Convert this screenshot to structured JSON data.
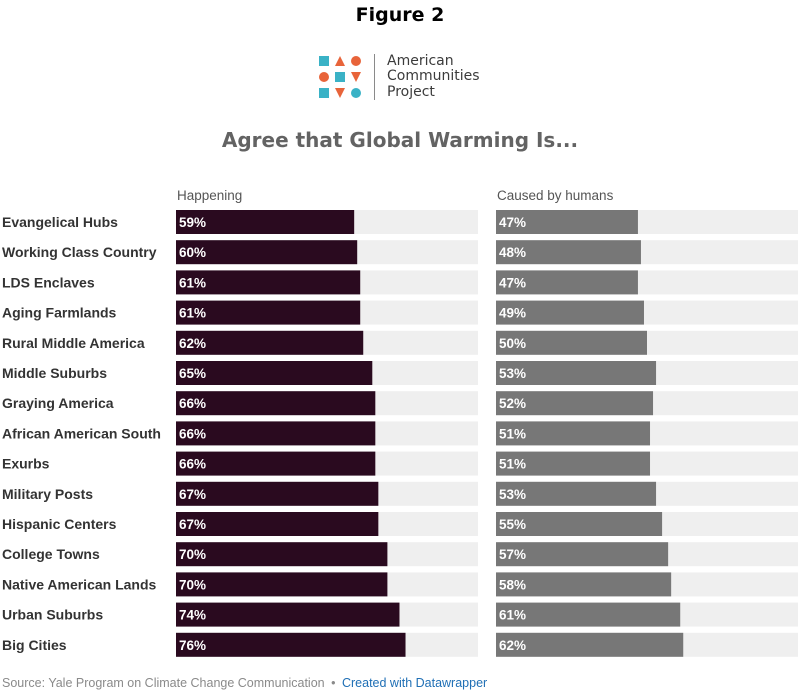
{
  "figure_label": "Figure 2",
  "logo": {
    "icon_name": "american-communities-project-logo",
    "line1": "American",
    "line2": "Communities",
    "line3": "Project",
    "colors": {
      "teal": "#3ab2c6",
      "orange": "#e8643a"
    }
  },
  "source": {
    "text": "Source: Yale Program on Climate Change Communication",
    "separator": "•",
    "credit": "Created with Datawrapper"
  },
  "chart_data": {
    "type": "bar",
    "orientation": "horizontal",
    "title": "Agree that Global Warming Is...",
    "xlim": [
      0,
      100
    ],
    "grid": false,
    "categories": [
      "Evangelical Hubs",
      "Working Class Country",
      "LDS Enclaves",
      "Aging Farmlands",
      "Rural Middle America",
      "Middle Suburbs",
      "Graying America",
      "African American South",
      "Exurbs",
      "Military Posts",
      "Hispanic Centers",
      "College Towns",
      "Native American Lands",
      "Urban Suburbs",
      "Big Cities"
    ],
    "series": [
      {
        "name": "Happening",
        "color": "#2a0a1f",
        "values": [
          59,
          60,
          61,
          61,
          62,
          65,
          66,
          66,
          66,
          67,
          67,
          70,
          70,
          74,
          76
        ],
        "labels": [
          "59%",
          "60%",
          "61%",
          "61%",
          "62%",
          "65%",
          "66%",
          "66%",
          "66%",
          "67%",
          "67%",
          "70%",
          "70%",
          "74%",
          "76%"
        ]
      },
      {
        "name": "Caused by humans",
        "color": "#777777",
        "values": [
          47,
          48,
          47,
          49,
          50,
          53,
          52,
          51,
          51,
          53,
          55,
          57,
          58,
          61,
          62
        ],
        "labels": [
          "47%",
          "48%",
          "47%",
          "49%",
          "50%",
          "53%",
          "52%",
          "51%",
          "51%",
          "53%",
          "55%",
          "57%",
          "58%",
          "61%",
          "62%"
        ]
      }
    ],
    "track_color": "#efefef"
  }
}
